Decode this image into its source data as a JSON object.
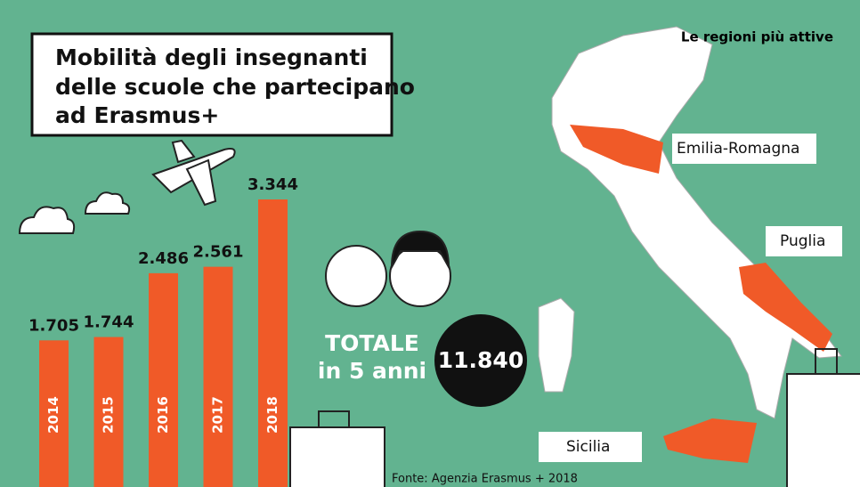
{
  "chart_data": {
    "type": "bar",
    "title": [
      "Mobilità degli insegnanti",
      "delle scuole che partecipano",
      "ad Erasmus+"
    ],
    "categories": [
      "2014",
      "2015",
      "2016",
      "2017",
      "2018"
    ],
    "values": [
      1705,
      1744,
      2486,
      2561,
      3344
    ],
    "value_labels": [
      "1.705",
      "1.744",
      "2.486",
      "2.561",
      "3.344"
    ],
    "color": "#f05a28"
  },
  "total": {
    "label": "TOTALE",
    "sublabel": "in 5 anni",
    "value": "11.840"
  },
  "map": {
    "title": "Le regioni più attive",
    "regions": [
      "Emilia-Romagna",
      "Puglia",
      "Sicilia"
    ]
  },
  "source": "Fonte: Agenzia Erasmus + 2018"
}
